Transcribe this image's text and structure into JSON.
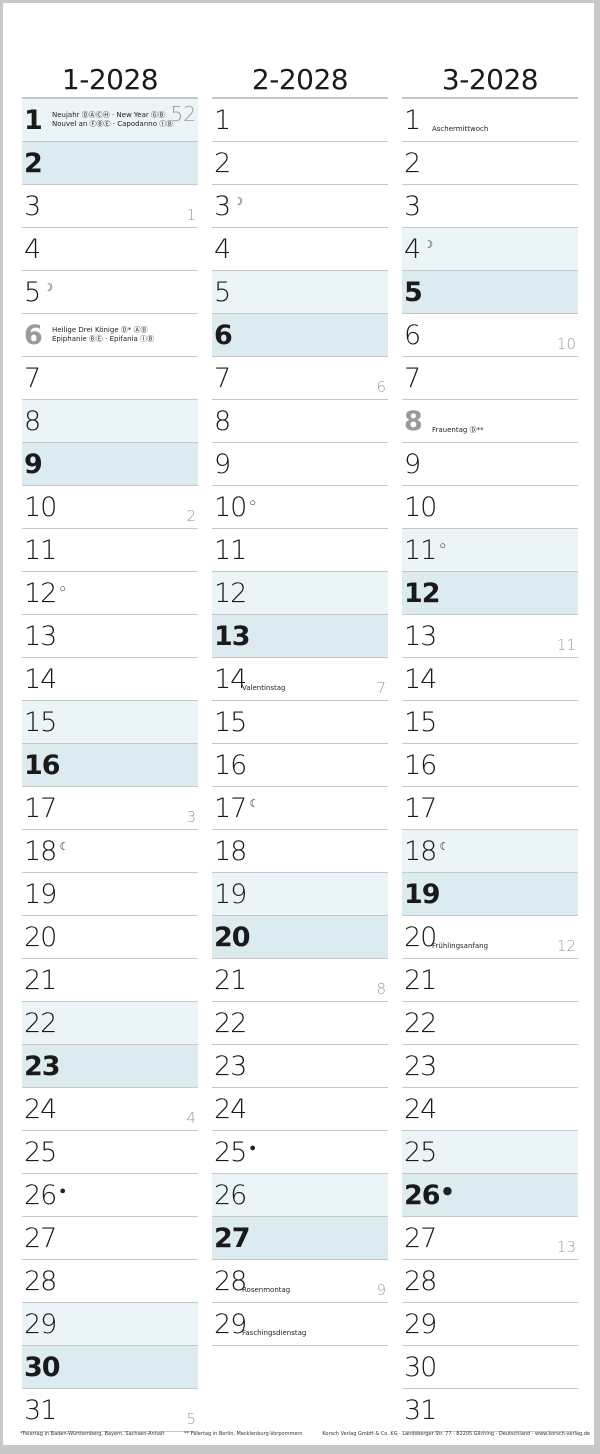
{
  "colors": {
    "saturday": "#ebf4f6",
    "sunday": "#dcebef",
    "holiday_text": "#9a9a9a",
    "line": "#c4c8c9"
  },
  "months": [
    {
      "title": "1-2028",
      "days": [
        {
          "d": "1",
          "type": "sat bold",
          "notes": [
            "Neujahr ⒹⒶⒸⒽ · New Year ⒼⒷ",
            "Nouvel an ⒻⒷⒺ · Capodanno ⒾⒷ"
          ],
          "week": "52",
          "week_top": true
        },
        {
          "d": "2",
          "type": "sun"
        },
        {
          "d": "3",
          "week": "1"
        },
        {
          "d": "4"
        },
        {
          "d": "5",
          "moon": "☽"
        },
        {
          "d": "6",
          "type": "hol",
          "notes": [
            "Heilige Drei Könige Ⓓ* ⒶⒷ",
            "Épiphanie ⒷⒺ · Epifania ⒾⒷ"
          ]
        },
        {
          "d": "7"
        },
        {
          "d": "8",
          "type": "sat"
        },
        {
          "d": "9",
          "type": "sun"
        },
        {
          "d": "10",
          "week": "2"
        },
        {
          "d": "11"
        },
        {
          "d": "12",
          "moon": "○"
        },
        {
          "d": "13"
        },
        {
          "d": "14"
        },
        {
          "d": "15",
          "type": "sat"
        },
        {
          "d": "16",
          "type": "sun"
        },
        {
          "d": "17",
          "week": "3"
        },
        {
          "d": "18",
          "moon": "☾"
        },
        {
          "d": "19"
        },
        {
          "d": "20"
        },
        {
          "d": "21"
        },
        {
          "d": "22",
          "type": "sat"
        },
        {
          "d": "23",
          "type": "sun"
        },
        {
          "d": "24",
          "week": "4"
        },
        {
          "d": "25"
        },
        {
          "d": "26",
          "moon": "●"
        },
        {
          "d": "27"
        },
        {
          "d": "28"
        },
        {
          "d": "29",
          "type": "sat"
        },
        {
          "d": "30",
          "type": "sun"
        },
        {
          "d": "31",
          "week": "5"
        }
      ]
    },
    {
      "title": "2-2028",
      "days": [
        {
          "d": "1"
        },
        {
          "d": "2"
        },
        {
          "d": "3",
          "moon": "☽"
        },
        {
          "d": "4"
        },
        {
          "d": "5",
          "type": "sat"
        },
        {
          "d": "6",
          "type": "sun"
        },
        {
          "d": "7",
          "week": "6"
        },
        {
          "d": "8"
        },
        {
          "d": "9"
        },
        {
          "d": "10",
          "moon": "○"
        },
        {
          "d": "11"
        },
        {
          "d": "12",
          "type": "sat"
        },
        {
          "d": "13",
          "type": "sun"
        },
        {
          "d": "14",
          "week": "7",
          "notes": [
            "Valentinstag"
          ]
        },
        {
          "d": "15"
        },
        {
          "d": "16"
        },
        {
          "d": "17",
          "moon": "☾"
        },
        {
          "d": "18"
        },
        {
          "d": "19",
          "type": "sat"
        },
        {
          "d": "20",
          "type": "sun"
        },
        {
          "d": "21",
          "week": "8"
        },
        {
          "d": "22"
        },
        {
          "d": "23"
        },
        {
          "d": "24"
        },
        {
          "d": "25",
          "moon": "●"
        },
        {
          "d": "26",
          "type": "sat"
        },
        {
          "d": "27",
          "type": "sun"
        },
        {
          "d": "28",
          "week": "9",
          "notes": [
            "Rosenmontag"
          ]
        },
        {
          "d": "29",
          "notes": [
            "Faschingsdienstag"
          ]
        }
      ]
    },
    {
      "title": "3-2028",
      "days": [
        {
          "d": "1",
          "notes": [
            "Aschermittwoch"
          ]
        },
        {
          "d": "2"
        },
        {
          "d": "3"
        },
        {
          "d": "4",
          "type": "sat",
          "moon": "☽"
        },
        {
          "d": "5",
          "type": "sun"
        },
        {
          "d": "6",
          "week": "10"
        },
        {
          "d": "7"
        },
        {
          "d": "8",
          "type": "hol",
          "notes": [
            "Frauentag Ⓓ**"
          ]
        },
        {
          "d": "9"
        },
        {
          "d": "10"
        },
        {
          "d": "11",
          "type": "sat",
          "moon": "○"
        },
        {
          "d": "12",
          "type": "sun"
        },
        {
          "d": "13",
          "week": "11"
        },
        {
          "d": "14"
        },
        {
          "d": "15"
        },
        {
          "d": "16"
        },
        {
          "d": "17"
        },
        {
          "d": "18",
          "type": "sat",
          "moon": "☾"
        },
        {
          "d": "19",
          "type": "sun"
        },
        {
          "d": "20",
          "week": "12",
          "notes": [
            "Frühlingsanfang"
          ]
        },
        {
          "d": "21"
        },
        {
          "d": "22"
        },
        {
          "d": "23"
        },
        {
          "d": "24"
        },
        {
          "d": "25",
          "type": "sat"
        },
        {
          "d": "26",
          "type": "sun",
          "moon": "●"
        },
        {
          "d": "27",
          "week": "13"
        },
        {
          "d": "28"
        },
        {
          "d": "29"
        },
        {
          "d": "30"
        },
        {
          "d": "31"
        }
      ]
    }
  ],
  "footer": {
    "note1": "*Feiertag in Baden-Württemberg, Bayern, Sachsen-Anhalt",
    "note2": "** Feiertag in Berlin, Mecklenburg-Vorpommern",
    "publisher": "Korsch Verlag GmbH & Co. KG · Landsberger Str. 77 · 82205 Gilching · Deutschland · www.korsch-verlag.de"
  }
}
